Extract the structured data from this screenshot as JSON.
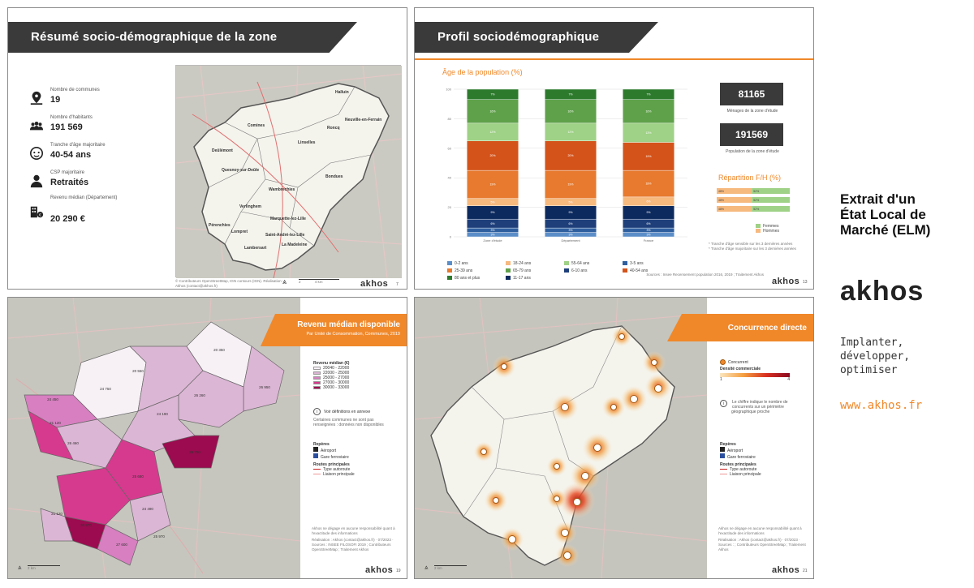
{
  "slide1": {
    "title": "Résumé socio-démographique de la zone",
    "kpis": [
      {
        "label": "Nombre de communes",
        "value": "19",
        "icon": "map-pin-icon"
      },
      {
        "label": "Nombre d'habitants",
        "value": "191 569",
        "icon": "people-icon"
      },
      {
        "label": "Tranche d'âge majoritaire",
        "value": "40-54 ans",
        "icon": "face-icon"
      },
      {
        "label": "CSP majoritaire",
        "value": "Retraités",
        "icon": "person-icon"
      },
      {
        "label": "Revenu médian (Département)",
        "value": "20 290 €",
        "icon": "building-money-icon"
      }
    ],
    "map_labels": [
      "Halluin",
      "Comines",
      "Roncq",
      "Neuville-en-Ferrain",
      "Linselles",
      "Deûlémont",
      "Quesnoy-sur-Deûle",
      "Bondues",
      "Wambrechies",
      "Verlinghem",
      "Pérenchies",
      "Marquette-lez-Lille",
      "Saint-André-lez-Lille",
      "Lompret",
      "Lambersart",
      "La Madeleine"
    ],
    "credit": "© Contributeurs OpenStreetMap, IGN contours (IGN). Réalisation : Akhos (contact@akhos.fr)",
    "scale_label": "4 km",
    "scale_zero": "2",
    "logo": "akhos",
    "page": "7"
  },
  "slide2": {
    "title": "Profil sociodémographique",
    "chart_title": "Âge de la population (%)",
    "households_value": "81165",
    "households_caption": "Ménages de la zone d'étude",
    "population_value": "191569",
    "population_caption": "Population de la zone d'étude",
    "repartition_title": "Répartition F/H (%)",
    "repartition_legend": [
      "Femmes",
      "Hommes"
    ],
    "footnote1": "* Tranche d'âge sensible sur les 3 dernières années",
    "footnote2": "* Tranche d'âge majoritaire sur les 3 dernières années",
    "legend": [
      {
        "label": "0-2 ans",
        "color": "#5b8ec9"
      },
      {
        "label": "3-5 ans",
        "color": "#2f5f9e"
      },
      {
        "label": "6-10 ans",
        "color": "#1e3f7a"
      },
      {
        "label": "11-17 ans",
        "color": "#0d2a5e"
      },
      {
        "label": "18-24 ans",
        "color": "#f6b97e"
      },
      {
        "label": "25-39 ans",
        "color": "#e77a2e"
      },
      {
        "label": "40-54 ans",
        "color": "#d4531a"
      },
      {
        "label": "55-64 ans",
        "color": "#9fd186"
      },
      {
        "label": "65-79 ans",
        "color": "#5fa14a"
      },
      {
        "label": "80 ans et plus",
        "color": "#2d7a2d"
      }
    ],
    "source": "Sources : Insee Recensement population 2016, 2019 ; Traitement Akhos",
    "logo": "akhos",
    "page": "13"
  },
  "slide3": {
    "title": "Revenu médian disponible",
    "subtitle": "Par Unité de Consommation, Communes, 2019",
    "legend_title": "Revenu médian (€)",
    "legend": [
      {
        "label": "20040 - 22000",
        "color": "#f7f1f6"
      },
      {
        "label": "22000 - 25000",
        "color": "#dcb6d5"
      },
      {
        "label": "25000 - 27000",
        "color": "#d77fc0"
      },
      {
        "label": "27000 - 30000",
        "color": "#d63a8e"
      },
      {
        "label": "30000 - 33000",
        "color": "#9c0b4f"
      }
    ],
    "note_title": "Voir définitions en annexe",
    "note_body": "Certaines communes ne sont pas renseignées : données non disponibles",
    "reperes_title": "Repères",
    "reperes": [
      "Aéroport",
      "Gare ferroviaire"
    ],
    "routes_title": "Routes principales",
    "routes": [
      "Type autoroute",
      "Liaison principale"
    ],
    "disclaimer": "Akhos ne dégage en aucune responsabilité quant à l'exactitude des informations",
    "credit": "Réalisation : Akhos (contact@akhos.fr) · 07/2023 · Sources : INSEE FILOSOFI 2019 ; Contributeurs OpenStreetMap ; Traitement Akhos",
    "scale_label": "2 km",
    "logo": "akhos",
    "page": "19",
    "map_values": [
      "20 350",
      "20 550",
      "26 950",
      "24 750",
      "26 260",
      "24 450",
      "24 190",
      "21 120",
      "26 460",
      "29 750",
      "25 680",
      "21 120",
      "30 970",
      "24 490",
      "25 970",
      "27 600"
    ]
  },
  "slide4": {
    "title": "Concurrence directe",
    "legend_concurrent": "Concurrent",
    "legend_density": "Densité commerciale",
    "density_min": "1",
    "density_max": "4",
    "note_body": "Le chiffre indique le nombre de concurrents sur un périmètre géographique proche",
    "reperes_title": "Repères",
    "reperes": [
      "Aéroport",
      "Gare ferroviaire"
    ],
    "routes_title": "Routes principales",
    "routes": [
      "Type autoroute",
      "Liaison principale"
    ],
    "disclaimer": "Akhos ne dégage en aucune responsabilité quant à l'exactitude des informations",
    "credit": "Réalisation : Akhos (contact@akhos.fr) · 07/2023 · Sources : ; Contributeurs OpenStreetMap ; Traitement Akhos",
    "scale_label": "2 km",
    "logo": "akhos",
    "page": "21"
  },
  "sidebar": {
    "title_line1": "Extrait d'un",
    "title_line2": "État Local de",
    "title_line3": "Marché (ELM)",
    "logo": "akhos",
    "tagline1": "Implanter,",
    "tagline2": "développer,",
    "tagline3": "optimiser",
    "url": "www.akhos.fr"
  },
  "chart_data": [
    {
      "type": "bar",
      "stacked": true,
      "title": "Âge de la population (%)",
      "categories": [
        "Zone d'étude",
        "Département",
        "France"
      ],
      "ylim": [
        0,
        100
      ],
      "series": [
        {
          "name": "0-2 ans",
          "values": [
            3,
            3,
            3
          ]
        },
        {
          "name": "3-5 ans",
          "values": [
            3,
            3,
            3
          ]
        },
        {
          "name": "6-10 ans",
          "values": [
            6,
            6,
            6
          ]
        },
        {
          "name": "11-17 ans",
          "values": [
            9,
            9,
            9
          ]
        },
        {
          "name": "18-24 ans",
          "values": [
            5,
            5,
            6
          ]
        },
        {
          "name": "25-39 ans",
          "values": [
            19,
            19,
            18
          ]
        },
        {
          "name": "40-54 ans",
          "values": [
            20,
            20,
            19
          ]
        },
        {
          "name": "55-64 ans",
          "values": [
            12,
            12,
            13
          ]
        },
        {
          "name": "65-79 ans",
          "values": [
            16,
            16,
            16
          ]
        },
        {
          "name": "80 ans et plus",
          "values": [
            7,
            7,
            7
          ]
        }
      ]
    },
    {
      "type": "bar",
      "orientation": "horizontal",
      "stacked": true,
      "title": "Répartition F/H (%)",
      "categories": [
        "Zone d'étude",
        "Département",
        "France"
      ],
      "xlim": [
        0,
        100
      ],
      "series": [
        {
          "name": "Hommes",
          "values": [
            48,
            48,
            48
          ]
        },
        {
          "name": "Femmes",
          "values": [
            52,
            52,
            52
          ]
        }
      ]
    }
  ]
}
